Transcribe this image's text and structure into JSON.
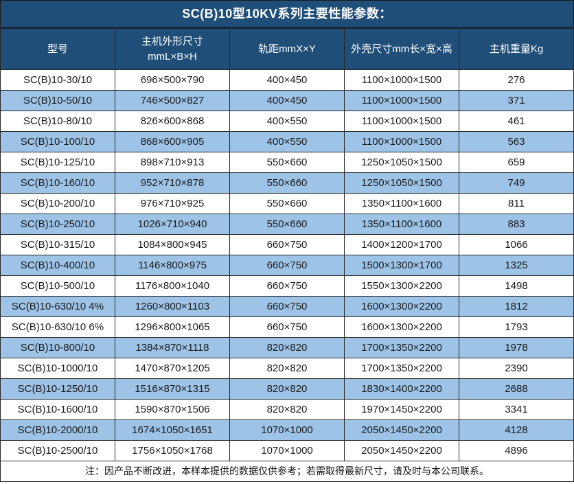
{
  "title": "SC(B)10型10KV系列主要性能参数：",
  "colors": {
    "header_bg": "#1F4E79",
    "header_text": "#FFFFFF",
    "row_stripe_bg": "#9DC3E6",
    "row_bg": "#FFFFFF",
    "border": "#262626",
    "text": "#1A1A1A"
  },
  "table": {
    "columns": [
      {
        "label": "型号"
      },
      {
        "label": "主机外形尺寸\nmmL×B×H"
      },
      {
        "label": "轨距mmX×Y"
      },
      {
        "label": "外壳尺寸mm长×宽×高"
      },
      {
        "label": "主机重量Kg"
      }
    ],
    "rows": [
      [
        "SC(B)10-30/10",
        "696×500×790",
        "400×450",
        "1100×1000×1500",
        "276"
      ],
      [
        "SC(B)10-50/10",
        "746×500×827",
        "400×450",
        "1100×1000×1500",
        "371"
      ],
      [
        "SC(B)10-80/10",
        "826×600×868",
        "400×550",
        "1100×1000×1500",
        "461"
      ],
      [
        "SC(B)10-100/10",
        "868×600×905",
        "400×550",
        "1100×1000×1500",
        "563"
      ],
      [
        "SC(B)10-125/10",
        "898×710×913",
        "550×660",
        "1250×1050×1500",
        "659"
      ],
      [
        "SC(B)10-160/10",
        "952×710×878",
        "550×660",
        "1250×1050×1500",
        "749"
      ],
      [
        "SC(B)10-200/10",
        "976×710×925",
        "550×660",
        "1350×1100×1600",
        "811"
      ],
      [
        "SC(B)10-250/10",
        "1026×710×940",
        "550×660",
        "1350×1100×1600",
        "883"
      ],
      [
        "SC(B)10-315/10",
        "1084×800×945",
        "660×750",
        "1400×1200×1700",
        "1066"
      ],
      [
        "SC(B)10-400/10",
        "1146×800×975",
        "660×750",
        "1500×1300×1700",
        "1325"
      ],
      [
        "SC(B)10-500/10",
        "1176×800×1040",
        "660×750",
        "1550×1300×2200",
        "1498"
      ],
      [
        "SC(B)10-630/10 4%",
        "1260×800×1103",
        "660×750",
        "1600×1300×2200",
        "1812"
      ],
      [
        "SC(B)10-630/10 6%",
        "1296×800×1065",
        "660×750",
        "1600×1300×2200",
        "1793"
      ],
      [
        "SC(B)10-800/10",
        "1384×870×1118",
        "820×820",
        "1700×1350×2200",
        "1978"
      ],
      [
        "SC(B)10-1000/10",
        "1470×870×1205",
        "820×820",
        "1700×1350×2200",
        "2390"
      ],
      [
        "SC(B)10-1250/10",
        "1516×870×1315",
        "820×820",
        "1830×1400×2200",
        "2688"
      ],
      [
        "SC(B)10-1600/10",
        "1590×870×1506",
        "820×820",
        "1970×1450×2200",
        "3341"
      ],
      [
        "SC(B)10-2000/10",
        "1674×1050×1651",
        "1070×1000",
        "2050×1450×2200",
        "4128"
      ],
      [
        "SC(B)10-2500/10",
        "1756×1050×1768",
        "1070×1000",
        "2050×1450×2200",
        "4896"
      ]
    ]
  },
  "footnote": "注：因产品不断改进，本样本提供的数据仅供参考；若需取得最新尺寸，请及时与本公司联系。"
}
